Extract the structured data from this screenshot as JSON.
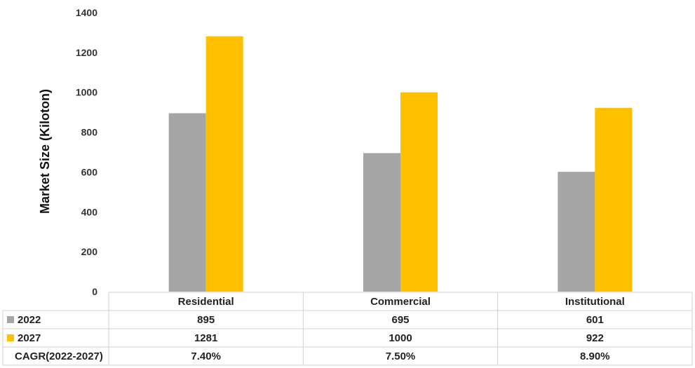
{
  "chart_data": {
    "type": "bar",
    "title": "",
    "xlabel": "",
    "ylabel": "Market Size (Kiloton)",
    "ylim": [
      0,
      1400
    ],
    "yticks": [
      0,
      200,
      400,
      600,
      800,
      1000,
      1200,
      1400
    ],
    "grid": false,
    "categories": [
      "Residential",
      "Commercial",
      "Institutional"
    ],
    "series": [
      {
        "name": "2022",
        "values": [
          895,
          695,
          601
        ],
        "labels": [
          "895",
          "695",
          "601"
        ],
        "color": "#a5a5a5"
      },
      {
        "name": "2027",
        "values": [
          1281,
          1000,
          922
        ],
        "labels": [
          "1281",
          "1000",
          "922"
        ],
        "color": "#ffc000"
      }
    ],
    "table_rows": [
      {
        "label": "CAGR(2022-2027)",
        "values": [
          "7.40%",
          "7.50%",
          "8.90%"
        ]
      }
    ]
  }
}
